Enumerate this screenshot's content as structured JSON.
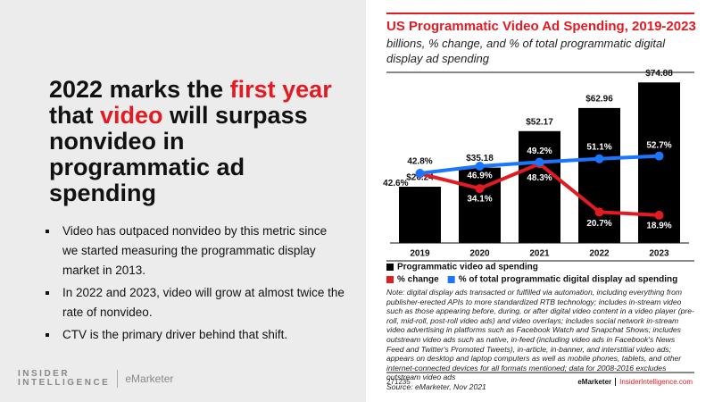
{
  "slide": {
    "headline": [
      "2022 marks the ",
      "first year",
      " that ",
      "video",
      " will surpass nonvideo in programmatic ad spending"
    ],
    "bullets": [
      "Video has outpaced nonvideo by this metric since we started measuring the programmatic display market in 2013.",
      "In 2022 and 2023, video will grow at almost twice the rate of nonvideo.",
      "CTV is the primary driver behind that shift."
    ],
    "logo_top": "INSIDER",
    "logo_bottom": "INTELLIGENCE",
    "logo_brand": "eMarketer"
  },
  "chart_data": {
    "type": "bar",
    "title": "US Programmatic Video Ad Spending, 2019-2023",
    "subtitle": "billions, % change, and % of total programmatic digital display ad spending",
    "categories": [
      "2019",
      "2020",
      "2021",
      "2022",
      "2023"
    ],
    "series": [
      {
        "name": "Programmatic video ad spending",
        "color": "#000000",
        "values": [
          26.24,
          35.18,
          52.17,
          62.96,
          74.88
        ],
        "value_labels": [
          "$26.24",
          "$35.18",
          "$52.17",
          "$62.96",
          "$74.88"
        ]
      },
      {
        "name": "% change",
        "color": "#e21b23",
        "axis": "y2",
        "values": [
          42.6,
          34.1,
          48.3,
          20.7,
          18.9
        ],
        "value_labels": [
          "42.6%",
          "34.1%",
          "48.3%",
          "20.7%",
          "18.9%"
        ]
      },
      {
        "name": "% of total programmatic digital display ad spending",
        "color": "#1a75ff",
        "axis": "y2",
        "values": [
          42.8,
          46.9,
          49.2,
          51.1,
          52.7
        ],
        "value_labels": [
          "42.8%",
          "46.9%",
          "49.2%",
          "51.1%",
          "52.7%"
        ]
      }
    ],
    "ylim": [
      0,
      80
    ],
    "y2lim": [
      3,
      101
    ],
    "note": "Note: digital display ads transacted or fulfilled via automation, including everything from publisher-erected APIs to more standardized RTB technology; includes in-stream video such as those appearing before, during, or after digital video content in a video player (pre-roll, mid-roll, post-roll video ads) and video overlays; includes social network in-stream video advertising in platforms such as Facebook Watch and Snapchat Shows; includes outstream video ads such as native, in-feed (including video ads in Facebook's News Feed and Twitter's Promoted Tweets), in-article, in-banner, and interstitial video ads; appears on desktop and laptop computers as well as mobile phones, tablets, and other internet-connected devices for all formats mentioned; data for 2008-2016 excludes outstream video ads",
    "source": "Source: eMarketer, Nov 2021",
    "chart_id": "271235",
    "footer_brand": "eMarketer",
    "footer_site": "InsiderIntelligence.com"
  }
}
